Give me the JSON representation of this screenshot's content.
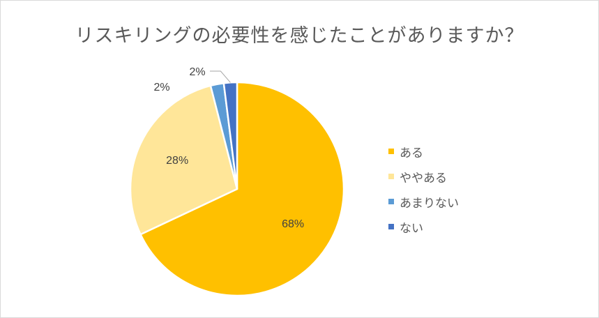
{
  "chart_data": {
    "type": "pie",
    "title": "リスキリングの必要性を感じたことがありますか？",
    "categories": [
      "ある",
      "ややある",
      "あまりない",
      "ない"
    ],
    "values": [
      68,
      28,
      2,
      2
    ],
    "labels": [
      "68%",
      "28%",
      "2%",
      "2%"
    ],
    "colors": [
      "#FFC000",
      "#FFE699",
      "#5B9BD5",
      "#4472C4"
    ],
    "start": "12 o'clock, clockwise",
    "legend_position": "right"
  }
}
